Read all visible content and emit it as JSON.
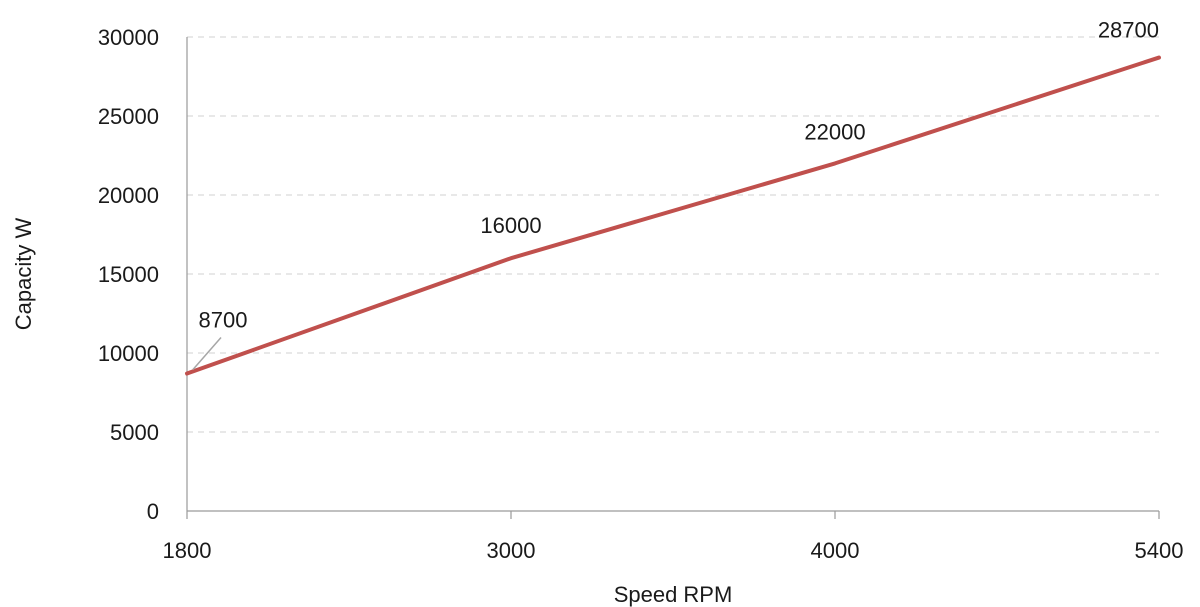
{
  "chart_data": {
    "type": "line",
    "title": "",
    "xlabel": "Speed RPM",
    "ylabel": "Capacity W",
    "categories": [
      "1800",
      "3000",
      "4000",
      "5400"
    ],
    "x": [
      1800,
      3000,
      4000,
      5400
    ],
    "series": [
      {
        "values": [
          8700,
          16000,
          22000,
          28700
        ],
        "color": "#c0504d"
      }
    ],
    "data_labels": [
      "8700",
      "16000",
      "22000",
      "28700"
    ],
    "y_ticks": [
      0,
      5000,
      10000,
      15000,
      20000,
      25000,
      30000
    ],
    "y_tick_labels": [
      "0",
      "5000",
      "10000",
      "15000",
      "20000",
      "25000",
      "30000"
    ],
    "ylim": [
      0,
      30000
    ],
    "grid": "horizontal-dashed",
    "legend": "none"
  }
}
